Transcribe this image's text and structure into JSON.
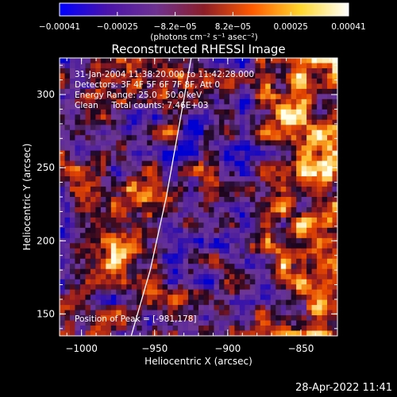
{
  "chart_data": {
    "type": "heatmap",
    "title": "Reconstructed RHESSI Image",
    "xlabel": "Heliocentric X (arcsec)",
    "ylabel": "Heliocentric Y (arcsec)",
    "xlim": [
      -1015,
      -825
    ],
    "ylim": [
      135,
      325
    ],
    "x_ticks": [
      -1000,
      -950,
      -900,
      -850
    ],
    "x_tick_labels": [
      "−1000",
      "−950",
      "−900",
      "−850"
    ],
    "y_ticks": [
      150,
      200,
      250,
      300
    ],
    "y_tick_labels": [
      "150",
      "200",
      "250",
      "300"
    ],
    "colorbar": {
      "range": [
        -0.00041,
        0.00041
      ],
      "tick_labels": [
        "−0.00041",
        "−0.00025",
        "−8.2e−05",
        "8.2e−05",
        "0.00025",
        "0.00041"
      ],
      "unit": "(photons cm⁻² s⁻¹ asec⁻²)",
      "colors": [
        "#0000ff",
        "#4b14aa",
        "#6e3291",
        "#8c1e28",
        "#ff5a00",
        "#ffd72d",
        "#ffffff"
      ]
    },
    "annotations": [
      "31-Jan-2004 11:38:20.000 to 11:42:28.000",
      "Detectors: 3F 4F 5F 6F 7F 8F, Att 0",
      "Energy Range: 25.0 - 50.0 keV",
      "Clean     Total counts: 7.46E+03"
    ],
    "peak_label": "Position of Peak = [-981,178]",
    "limb_curve": {
      "x": [
        -966,
        -953,
        -942,
        -933,
        -925
      ],
      "y": [
        135,
        180,
        230,
        280,
        325
      ]
    }
  },
  "timestamp": "28-Apr-2022 11:41"
}
